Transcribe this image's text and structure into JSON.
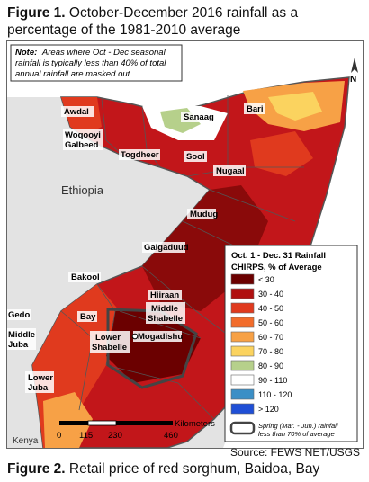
{
  "figure1": {
    "label": "Figure 1.",
    "title_line1": "October-December 2016 rainfall as a",
    "title_line2": "percentage of the 1981-2010 average"
  },
  "note": {
    "label": "Note:",
    "lines": [
      "Areas where Oct - Dec seasonal",
      "rainfall is typically less than 40% of total",
      "annual rainfall are masked out"
    ]
  },
  "regions": [
    "Awdal",
    "Woqooyi",
    "Galbeed",
    "Togdheer",
    "Sanaag",
    "Bari",
    "Sool",
    "Nugaal",
    "Mudug",
    "Galgaduud",
    "Bakool",
    "Hiiraan",
    "Middle",
    "Shabelle",
    "Gedo",
    "Bay",
    "Middle",
    "Juba",
    "Lower",
    "Shabelle",
    "Mogadishu",
    "Lower",
    "Juba"
  ],
  "countries": {
    "ethiopia": "Ethiopia",
    "kenya": "Kenya"
  },
  "north_arrow": "N",
  "legend": {
    "title": "Oct. 1 - Dec. 31 Rainfall",
    "subtitle": "CHIRPS, % of Average",
    "items": [
      {
        "label": "< 30",
        "color": "#6b0000"
      },
      {
        "label": "30 - 40",
        "color": "#b01010"
      },
      {
        "label": "40 - 50",
        "color": "#e03a1e"
      },
      {
        "label": "50 - 60",
        "color": "#f26c2b"
      },
      {
        "label": "60 - 70",
        "color": "#f7a146"
      },
      {
        "label": "70 - 80",
        "color": "#fbd35f"
      },
      {
        "label": "80 - 90",
        "color": "#b6d08b"
      },
      {
        "label": "90 - 110",
        "color": "#ffffff"
      },
      {
        "label": "110 - 120",
        "color": "#3b8fc6"
      },
      {
        "label": "> 120",
        "color": "#1f4fd6"
      }
    ],
    "mask_label_line1": "Spring (Mar. - Jun.) rainfall",
    "mask_label_line2": "less than 70% of average"
  },
  "scale": {
    "unit": "Kilometers",
    "ticks": [
      "0",
      "115",
      "230",
      "460"
    ]
  },
  "source": "Source: FEWS NET/USGS",
  "figure2": {
    "label": "Figure 2.",
    "title": "Retail price of red sorghum, Baidoa, Bay"
  }
}
